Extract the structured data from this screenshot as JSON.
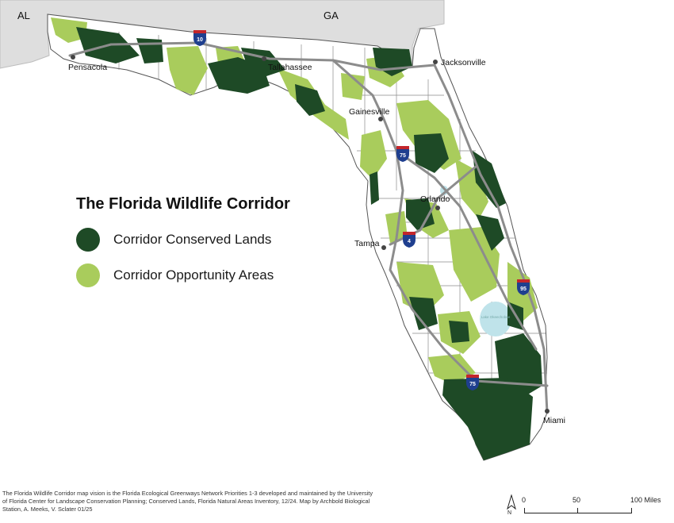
{
  "legend": {
    "title": "The Florida Wildlife Corridor",
    "items": [
      {
        "label": "Corridor Conserved Lands",
        "color": "#1e4a26"
      },
      {
        "label": "Corridor Opportunity Areas",
        "color": "#a9cc5c"
      }
    ]
  },
  "states": {
    "al": "AL",
    "ga": "GA"
  },
  "cities": {
    "pensacola": "Pensacola",
    "tallahassee": "Tallahassee",
    "jacksonville": "Jacksonville",
    "gainesville": "Gainesville",
    "orlando": "Orlando",
    "tampa": "Tampa",
    "miami": "Miami",
    "lake": "Lake Okeechobee"
  },
  "highways": {
    "i10": "10",
    "i75_north": "75",
    "i4": "4",
    "i95": "95",
    "i75_south": "75"
  },
  "footnote": "The Florida Wildlife Corridor map vision is the Florida Ecological Greenways Network Priorities 1-3 developed and maintained by the University of Florida Center for Landscape Conservation Planning; Conserved Lands, Florida Natural Areas Inventory, 12/24. Map by Archbold Biological Station, A. Meeks, V. Sclater 01/25",
  "scale": {
    "ticks": [
      "0",
      "50"
    ],
    "end_label": "100 Miles"
  },
  "north": "N",
  "colors": {
    "neighbor_land": "#dedede",
    "florida_land": "#ffffff",
    "county_lines": "#8a8a8a",
    "highways": "#8c8c8c",
    "water": "#bfe3ea",
    "conserved": "#1e4a26",
    "opportunity": "#a9cc5c",
    "shield_blue": "#1f3f8f",
    "shield_red": "#c4262b"
  }
}
